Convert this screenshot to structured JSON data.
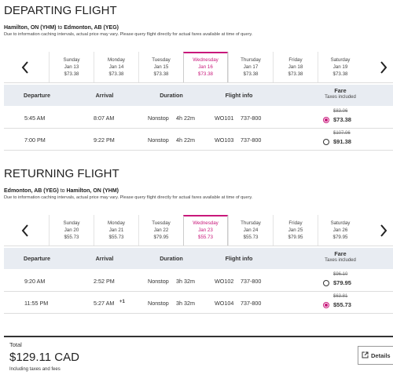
{
  "departing": {
    "title": "DEPARTING FLIGHT",
    "route": {
      "from": "Hamilton, ON (YHM)",
      "connector": "to",
      "to": "Edmonton, AB (YEG)"
    },
    "notice": "Due to information caching intervals, actual price may vary. Please query flight directly for actual fares available at time of query.",
    "dates": [
      {
        "day": "Sunday",
        "date": "Jan 13",
        "price": "$73.38"
      },
      {
        "day": "Monday",
        "date": "Jan 14",
        "price": "$73.38"
      },
      {
        "day": "Tuesday",
        "date": "Jan 15",
        "price": "$73.38"
      },
      {
        "day": "Wednesday",
        "date": "Jan 16",
        "price": "$73.38",
        "selected": true
      },
      {
        "day": "Thursday",
        "date": "Jan 17",
        "price": "$73.38"
      },
      {
        "day": "Friday",
        "date": "Jan 18",
        "price": "$73.38"
      },
      {
        "day": "Saturday",
        "date": "Jan 19",
        "price": "$73.38"
      }
    ],
    "columns": {
      "departure": "Departure",
      "arrival": "Arrival",
      "duration": "Duration",
      "flight_info": "Flight info",
      "fare": "Fare",
      "fare_note": "Taxes included"
    },
    "flights": [
      {
        "departure": "5:45 AM",
        "arrival": "8:07 AM",
        "stops": "Nonstop",
        "duration": "4h 22m",
        "flight": "WO101",
        "aircraft": "737-800",
        "old_fare": "$83.06",
        "fare": "$73.38",
        "selected": true
      },
      {
        "departure": "7:00 PM",
        "arrival": "9:22 PM",
        "stops": "Nonstop",
        "duration": "4h 22m",
        "flight": "WO103",
        "aircraft": "737-800",
        "old_fare": "$107.06",
        "fare": "$91.38"
      }
    ]
  },
  "returning": {
    "title": "RETURNING FLIGHT",
    "route": {
      "from": "Edmonton, AB (YEG)",
      "connector": "to",
      "to": "Hamilton, ON (YHM)"
    },
    "notice": "Due to information caching intervals, actual price may vary. Please query flight directly for actual fares available at time of query.",
    "dates": [
      {
        "day": "Sunday",
        "date": "Jan 20",
        "price": "$55.73"
      },
      {
        "day": "Monday",
        "date": "Jan 21",
        "price": "$55.73"
      },
      {
        "day": "Tuesday",
        "date": "Jan 22",
        "price": "$79.95"
      },
      {
        "day": "Wednesday",
        "date": "Jan 23",
        "price": "$55.73",
        "selected": true
      },
      {
        "day": "Thursday",
        "date": "Jan 24",
        "price": "$55.73"
      },
      {
        "day": "Friday",
        "date": "Jan 25",
        "price": "$79.95"
      },
      {
        "day": "Saturday",
        "date": "Jan 26",
        "price": "$79.95"
      }
    ],
    "columns": {
      "departure": "Departure",
      "arrival": "Arrival",
      "duration": "Duration",
      "flight_info": "Flight info",
      "fare": "Fare",
      "fare_note": "Taxes included"
    },
    "flights": [
      {
        "departure": "9:20 AM",
        "arrival": "2:52 PM",
        "stops": "Nonstop",
        "duration": "3h 32m",
        "flight": "WO102",
        "aircraft": "737-800",
        "old_fare": "$96.10",
        "fare": "$79.95"
      },
      {
        "departure": "11:55 PM",
        "arrival": "5:27 AM",
        "day_offset": "+1",
        "stops": "Nonstop",
        "duration": "3h 32m",
        "flight": "WO104",
        "aircraft": "737-800",
        "old_fare": "$63.81",
        "fare": "$55.73",
        "selected": true
      }
    ]
  },
  "total": {
    "label": "Total",
    "amount": "$129.11 CAD",
    "note": "Including taxes and fees",
    "button": "Details"
  }
}
